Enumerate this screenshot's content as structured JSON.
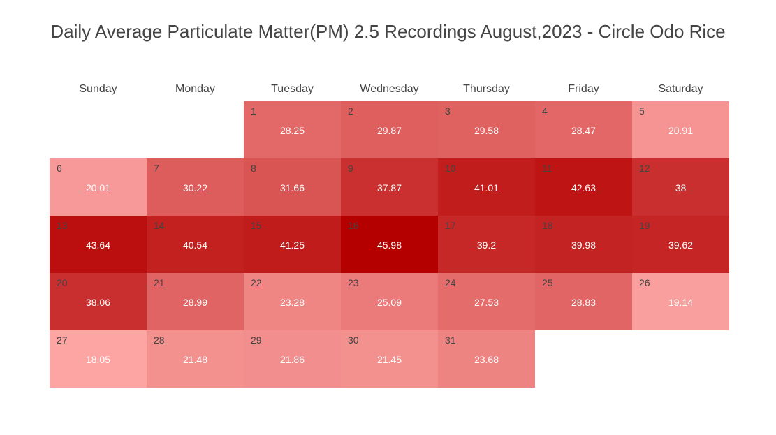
{
  "chart_data": {
    "type": "heatmap",
    "title": "Daily Average Particulate Matter(PM) 2.5 Recordings August,2023 - Circle Odo Rice",
    "weekdays": [
      "Sunday",
      "Monday",
      "Tuesday",
      "Wednesday",
      "Thursday",
      "Friday",
      "Saturday"
    ],
    "first_day_weekday_index": 2,
    "color_scale": {
      "low_color": "#fca5a3",
      "high_color": "#b50000",
      "min": 18.05,
      "max": 45.98
    },
    "days": [
      {
        "day": 1,
        "value": 28.25
      },
      {
        "day": 2,
        "value": 29.87
      },
      {
        "day": 3,
        "value": 29.58
      },
      {
        "day": 4,
        "value": 28.47
      },
      {
        "day": 5,
        "value": 20.91
      },
      {
        "day": 6,
        "value": 20.01
      },
      {
        "day": 7,
        "value": 30.22
      },
      {
        "day": 8,
        "value": 31.66
      },
      {
        "day": 9,
        "value": 37.87
      },
      {
        "day": 10,
        "value": 41.01
      },
      {
        "day": 11,
        "value": 42.63
      },
      {
        "day": 12,
        "value": 38
      },
      {
        "day": 13,
        "value": 43.64
      },
      {
        "day": 14,
        "value": 40.54
      },
      {
        "day": 15,
        "value": 41.25
      },
      {
        "day": 16,
        "value": 45.98
      },
      {
        "day": 17,
        "value": 39.2
      },
      {
        "day": 18,
        "value": 39.98
      },
      {
        "day": 19,
        "value": 39.62
      },
      {
        "day": 20,
        "value": 38.06
      },
      {
        "day": 21,
        "value": 28.99
      },
      {
        "day": 22,
        "value": 23.28
      },
      {
        "day": 23,
        "value": 25.09
      },
      {
        "day": 24,
        "value": 27.53
      },
      {
        "day": 25,
        "value": 28.83
      },
      {
        "day": 26,
        "value": 19.14
      },
      {
        "day": 27,
        "value": 18.05
      },
      {
        "day": 28,
        "value": 21.48
      },
      {
        "day": 29,
        "value": 21.86
      },
      {
        "day": 30,
        "value": 21.45
      },
      {
        "day": 31,
        "value": 23.68
      }
    ]
  }
}
